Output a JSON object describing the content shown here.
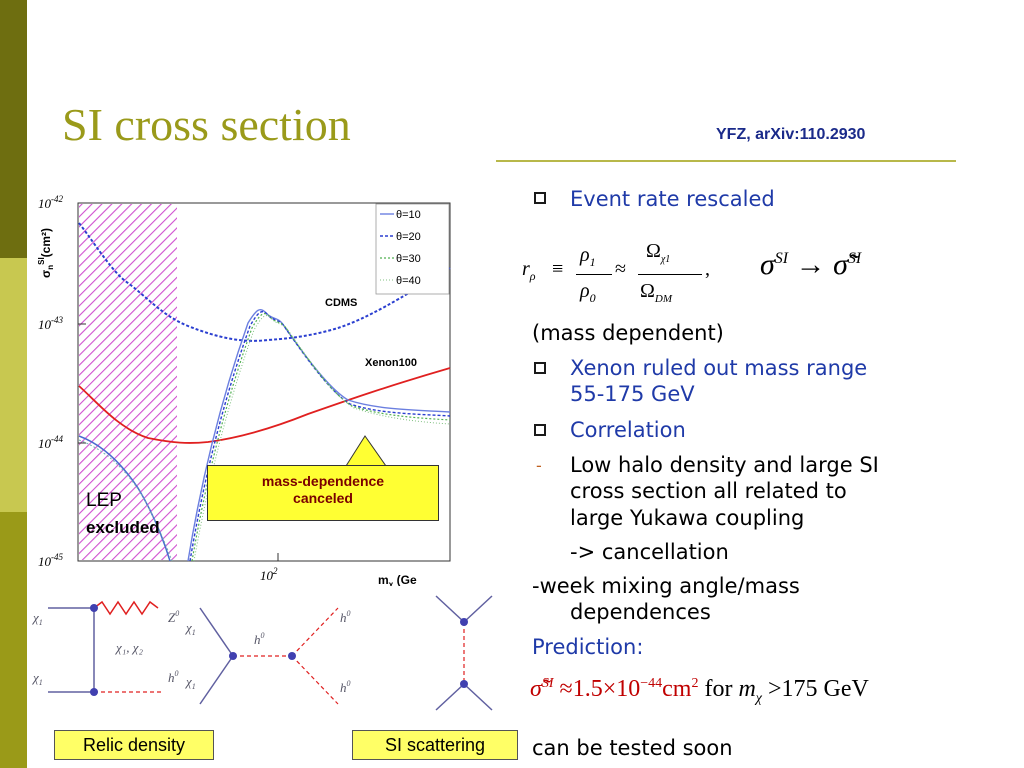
{
  "slide": {
    "title": "SI cross section",
    "reference": "YFZ, arXiv:110.2930",
    "accent_color": "#9a9a1a",
    "text_color": "#1f3aa8"
  },
  "plot": {
    "y_axis_label": "σ",
    "y_axis_label_sub": "n",
    "y_axis_label_sup": "SI",
    "y_axis_label_unit": "(cm²)",
    "y_ticks": [
      "10",
      "10",
      "10",
      "10"
    ],
    "y_tick_exponents": [
      "-42",
      "-43",
      "-44",
      "-45"
    ],
    "x_tick": "10",
    "x_tick_exp": "2",
    "x_axis_label": "m",
    "x_axis_label_sub": "χ",
    "x_axis_label_tail": " (Ge",
    "legend": [
      "θ=10",
      "θ=20",
      "θ=30",
      "θ=40"
    ],
    "cdms_label": "CDMS",
    "xenon_label": "Xenon100",
    "callout_line1": "mass-dependence",
    "callout_line2": "canceled",
    "lep_label": "LEP",
    "lep_excluded": "excluded"
  },
  "diagrams": {
    "relic_chi1_top": "χ",
    "relic_chi1_bottom": "χ",
    "relic_chi1_sub": "1",
    "relic_mid": "χ₁, χ₂",
    "relic_z0": "Z",
    "relic_z0_sup": "0",
    "relic_h0": "h",
    "relic_h0_sup": "0",
    "s_chi1_top": "χ",
    "s_chi1_bottom": "χ",
    "s_h0_mid": "h",
    "s_h0_top": "h",
    "s_h0_bottom": "h",
    "relic_density_label": "Relic density",
    "si_scattering_label": "SI scattering"
  },
  "content": {
    "bullet1": "Event rate rescaled",
    "formula_r": "r",
    "formula_r_sub": "ρ",
    "formula_rho1": "ρ",
    "formula_rho1_sub": "1",
    "formula_rho0": "ρ",
    "formula_rho0_sub": "0",
    "formula_omega_chi": "Ω",
    "formula_omega_chi_sub": "χ1",
    "formula_omega_dm": "Ω",
    "formula_omega_dm_sub": "DM",
    "formula_sigma": "σ",
    "formula_sigma_sup": "SI",
    "formula_arrow": "→",
    "formula_sigma_tilde": "σ̃",
    "mass_dependent": "(mass dependent)",
    "bullet2_line1": "Xenon ruled out mass range",
    "bullet2_line2": "55-175 GeV",
    "bullet3": "Correlation",
    "sub_line1": "Low halo density and large SI",
    "sub_line2": "cross section all related to",
    "sub_line3": "large Yukawa coupling",
    "sub_line4": "-> cancellation",
    "week_line1": "-week mixing angle/mass",
    "week_line2": "dependences",
    "prediction": "Prediction:",
    "pred_sigma": "σ̃",
    "pred_sup": "SI",
    "pred_approx": "≈1.5×10",
    "pred_exp": "−44",
    "pred_unit": "cm",
    "pred_unit_exp": "2",
    "pred_for": "for",
    "pred_m": "m",
    "pred_m_sub": "χ",
    "pred_gt": ">175 GeV",
    "tested_soon": "can be tested soon"
  }
}
